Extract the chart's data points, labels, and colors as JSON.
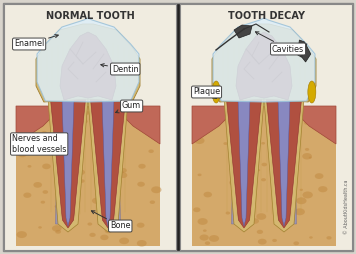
{
  "title_left": "NORMAL TOOTH",
  "title_right": "TOOTH DECAY",
  "bg_outer": "#d8d4cc",
  "panel_bg_light": "#f0ece0",
  "bone_color": "#d4a96a",
  "bone_spot": "#c08840",
  "dentin_color": "#d4b870",
  "dentin_lines": "#c0a050",
  "pulp_color": "#b05040",
  "pulp_dark": "#803020",
  "enamel_fill": "#ddeef8",
  "enamel_edge": "#9ac0d8",
  "gum_color": "#c06858",
  "gum_edge": "#a04838",
  "nerve_fill": "#8888c0",
  "nerve_edge": "#5555a0",
  "root_outer": "#d4b870",
  "root_ligament": "#9090c0",
  "cavity_color": "#404040",
  "plaque_color": "#d4aa00",
  "decay_brown": "#7a3c10",
  "title_fontsize": 7.0,
  "label_fontsize": 5.8,
  "watermark": "© AboutKidsHealth.ca"
}
